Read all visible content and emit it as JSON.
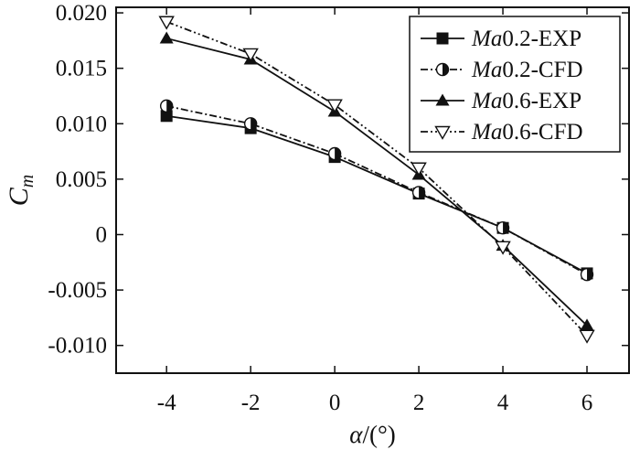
{
  "chart_data": {
    "type": "line",
    "xlabel_italic": "α",
    "xlabel_rest": "/(°)",
    "ylabel_main": "C",
    "ylabel_sub": "m",
    "xlim": [
      -5.2,
      7.0
    ],
    "ylim": [
      -0.0125,
      0.0205
    ],
    "xticks": [
      {
        "v": -4,
        "label": "-4"
      },
      {
        "v": -2,
        "label": "-2"
      },
      {
        "v": 0,
        "label": "0"
      },
      {
        "v": 2,
        "label": "2"
      },
      {
        "v": 4,
        "label": "4"
      },
      {
        "v": 6,
        "label": "6"
      }
    ],
    "yticks": [
      {
        "v": 0.02,
        "label": "0.020"
      },
      {
        "v": 0.015,
        "label": "0.015"
      },
      {
        "v": 0.01,
        "label": "0.010"
      },
      {
        "v": 0.005,
        "label": "0.005"
      },
      {
        "v": 0,
        "label": "0"
      },
      {
        "v": -0.005,
        "label": "-0.005"
      },
      {
        "v": -0.01,
        "label": "-0.010"
      }
    ],
    "legend_position": "top-right",
    "series": [
      {
        "name_italic": "Ma",
        "name_rest": "0.2-EXP",
        "marker": "square",
        "dash": "solid",
        "x": [
          -4,
          -2,
          0,
          2,
          4,
          6
        ],
        "y": [
          0.0107,
          0.0096,
          0.007,
          0.0037,
          0.0006,
          -0.0035
        ]
      },
      {
        "name_italic": "Ma",
        "name_rest": "0.2-CFD",
        "marker": "half-circle",
        "dash": "dashdot",
        "x": [
          -4,
          -2,
          0,
          2,
          4,
          6
        ],
        "y": [
          0.0116,
          0.01,
          0.0073,
          0.0038,
          0.0006,
          -0.0036
        ]
      },
      {
        "name_italic": "Ma",
        "name_rest": "0.6-EXP",
        "marker": "triangle-up",
        "dash": "solid",
        "x": [
          -4,
          -2,
          0,
          2,
          4,
          6
        ],
        "y": [
          0.0177,
          0.0158,
          0.0111,
          0.0054,
          -0.001,
          -0.0082
        ]
      },
      {
        "name_italic": "Ma",
        "name_rest": "0.6-CFD",
        "marker": "triangle-down",
        "dash": "dashdotdot",
        "x": [
          -4,
          -2,
          0,
          2,
          4,
          6
        ],
        "y": [
          0.0192,
          0.0163,
          0.0117,
          0.006,
          -0.0011,
          -0.0091
        ]
      }
    ]
  }
}
